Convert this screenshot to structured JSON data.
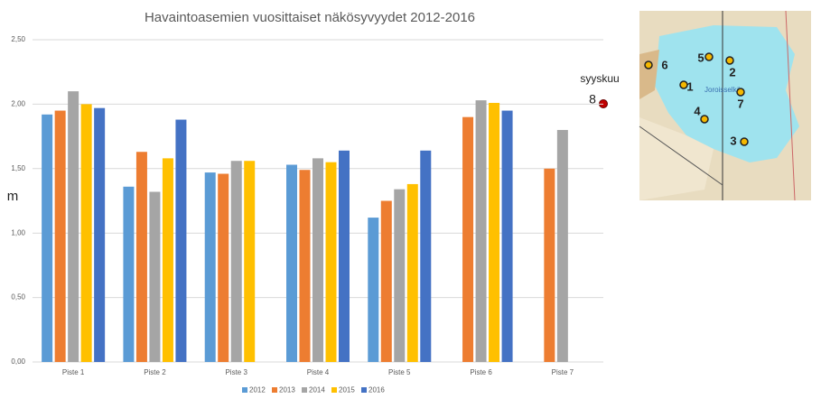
{
  "chart_data": {
    "type": "bar",
    "title": "Havaintoasemien vuosittaiset näkösyvyydet 2012-2016",
    "y_label": "m",
    "categories": [
      "Piste 1",
      "Piste 2",
      "Piste 3",
      "Piste 4",
      "Piste 5",
      "Piste 6",
      "Piste 7"
    ],
    "series": [
      {
        "name": "2012",
        "color": "#5b9bd5",
        "values": [
          1.92,
          1.36,
          1.47,
          1.53,
          1.12,
          null,
          null
        ]
      },
      {
        "name": "2013",
        "color": "#ed7d31",
        "values": [
          1.95,
          1.63,
          1.46,
          1.49,
          1.25,
          1.9,
          1.5
        ]
      },
      {
        "name": "2014",
        "color": "#a5a5a5",
        "values": [
          2.1,
          1.32,
          1.56,
          1.58,
          1.34,
          2.03,
          1.8
        ]
      },
      {
        "name": "2015",
        "color": "#ffc000",
        "values": [
          2.0,
          1.58,
          1.56,
          1.55,
          1.38,
          2.01,
          null
        ]
      },
      {
        "name": "2016",
        "color": "#4472c4",
        "values": [
          1.97,
          1.88,
          null,
          1.64,
          1.64,
          1.95,
          null
        ]
      }
    ],
    "ylim": [
      0,
      2.5
    ],
    "yticks": [
      {
        "value": 0,
        "label": "0,00"
      },
      {
        "value": 0.5,
        "label": "0,50"
      },
      {
        "value": 1,
        "label": "1,00"
      },
      {
        "value": 1.5,
        "label": "1,50"
      },
      {
        "value": 2,
        "label": "2,00"
      },
      {
        "value": 2.5,
        "label": "2,50"
      }
    ],
    "grid": true,
    "legend": "bottom",
    "annotations": [
      "syyskuu",
      "8"
    ]
  },
  "map": {
    "labels": [
      "1",
      "2",
      "3",
      "4",
      "5",
      "6",
      "7"
    ],
    "lake": "Joroisselkä"
  }
}
